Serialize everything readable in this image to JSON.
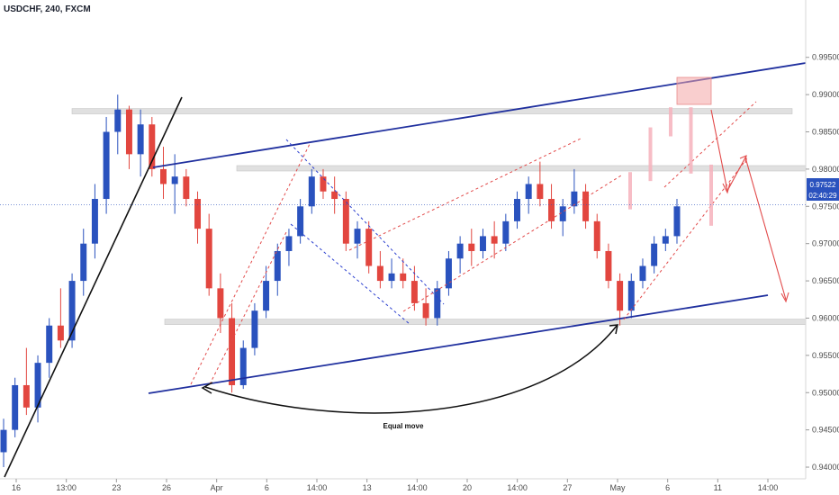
{
  "chart_data": {
    "type": "candlestick",
    "title": "USDCHF, 240, FXCM",
    "symbol": "USDCHF",
    "timeframe": "240",
    "source": "FXCM",
    "y_ticks": [
      "0.99500",
      "0.99000",
      "0.98500",
      "0.98000",
      "0.97500",
      "0.97000",
      "0.96500",
      "0.96000",
      "0.95500",
      "0.95000",
      "0.94500",
      "0.94000"
    ],
    "ylim": [
      0.9394,
      0.9998
    ],
    "x_ticks": [
      "16",
      "13:00",
      "23",
      "26",
      "Apr",
      "6",
      "14:00",
      "13",
      "14:00",
      "20",
      "14:00",
      "27",
      "May",
      "6",
      "11",
      "14:00"
    ],
    "current_price": "0.97522",
    "countdown": "02:40:29",
    "colors": {
      "up": "#2a52be",
      "down": "#e2463f",
      "trend": "#1f2f9e",
      "channel": "#e24a4a",
      "projection": "#f6b2bc"
    },
    "annotations": {
      "equal_move": "Equal move"
    },
    "key_levels": [
      0.98777,
      0.98011,
      0.9595
    ],
    "candles": [
      [
        0.942,
        0.9465,
        0.94,
        0.945
      ],
      [
        0.945,
        0.952,
        0.944,
        0.951
      ],
      [
        0.951,
        0.956,
        0.947,
        0.948
      ],
      [
        0.948,
        0.955,
        0.946,
        0.954
      ],
      [
        0.954,
        0.96,
        0.952,
        0.959
      ],
      [
        0.959,
        0.964,
        0.956,
        0.957
      ],
      [
        0.957,
        0.966,
        0.956,
        0.965
      ],
      [
        0.965,
        0.972,
        0.963,
        0.97
      ],
      [
        0.97,
        0.978,
        0.968,
        0.976
      ],
      [
        0.976,
        0.987,
        0.974,
        0.985
      ],
      [
        0.985,
        0.99,
        0.982,
        0.988
      ],
      [
        0.988,
        0.9885,
        0.98,
        0.982
      ],
      [
        0.982,
        0.988,
        0.979,
        0.986
      ],
      [
        0.986,
        0.987,
        0.979,
        0.98
      ],
      [
        0.98,
        0.983,
        0.976,
        0.978
      ],
      [
        0.978,
        0.982,
        0.974,
        0.979
      ],
      [
        0.979,
        0.98,
        0.975,
        0.976
      ],
      [
        0.976,
        0.977,
        0.97,
        0.972
      ],
      [
        0.972,
        0.974,
        0.963,
        0.964
      ],
      [
        0.964,
        0.966,
        0.958,
        0.96
      ],
      [
        0.96,
        0.962,
        0.95,
        0.951
      ],
      [
        0.951,
        0.957,
        0.9505,
        0.956
      ],
      [
        0.956,
        0.962,
        0.955,
        0.961
      ],
      [
        0.961,
        0.967,
        0.96,
        0.965
      ],
      [
        0.965,
        0.97,
        0.963,
        0.969
      ],
      [
        0.969,
        0.972,
        0.967,
        0.971
      ],
      [
        0.971,
        0.976,
        0.97,
        0.975
      ],
      [
        0.975,
        0.98,
        0.974,
        0.979
      ],
      [
        0.979,
        0.98,
        0.976,
        0.977
      ],
      [
        0.977,
        0.979,
        0.974,
        0.976
      ],
      [
        0.976,
        0.977,
        0.969,
        0.97
      ],
      [
        0.97,
        0.973,
        0.968,
        0.972
      ],
      [
        0.972,
        0.973,
        0.966,
        0.967
      ],
      [
        0.967,
        0.969,
        0.964,
        0.965
      ],
      [
        0.965,
        0.968,
        0.964,
        0.966
      ],
      [
        0.966,
        0.968,
        0.964,
        0.965
      ],
      [
        0.965,
        0.967,
        0.961,
        0.962
      ],
      [
        0.962,
        0.964,
        0.959,
        0.96
      ],
      [
        0.96,
        0.965,
        0.959,
        0.964
      ],
      [
        0.964,
        0.969,
        0.963,
        0.968
      ],
      [
        0.968,
        0.971,
        0.966,
        0.97
      ],
      [
        0.97,
        0.972,
        0.967,
        0.969
      ],
      [
        0.969,
        0.972,
        0.968,
        0.971
      ],
      [
        0.971,
        0.973,
        0.968,
        0.97
      ],
      [
        0.97,
        0.974,
        0.969,
        0.973
      ],
      [
        0.973,
        0.977,
        0.972,
        0.976
      ],
      [
        0.976,
        0.979,
        0.974,
        0.978
      ],
      [
        0.978,
        0.981,
        0.975,
        0.976
      ],
      [
        0.976,
        0.978,
        0.972,
        0.973
      ],
      [
        0.973,
        0.976,
        0.971,
        0.975
      ],
      [
        0.975,
        0.98,
        0.974,
        0.977
      ],
      [
        0.977,
        0.978,
        0.972,
        0.973
      ],
      [
        0.973,
        0.974,
        0.968,
        0.969
      ],
      [
        0.969,
        0.97,
        0.964,
        0.965
      ],
      [
        0.965,
        0.966,
        0.959,
        0.961
      ],
      [
        0.961,
        0.966,
        0.96,
        0.965
      ],
      [
        0.965,
        0.968,
        0.964,
        0.967
      ],
      [
        0.967,
        0.971,
        0.966,
        0.97
      ],
      [
        0.97,
        0.972,
        0.969,
        0.971
      ],
      [
        0.971,
        0.976,
        0.97,
        0.975
      ]
    ],
    "projection_path": [
      0.9752,
      0.979,
      0.985,
      0.9877,
      0.98,
      0.973,
      0.976,
      0.979,
      0.97,
      0.961
    ],
    "x_label": "",
    "y_label": ""
  }
}
